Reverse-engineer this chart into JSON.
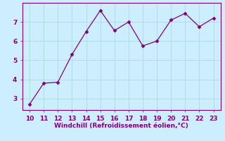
{
  "x": [
    10,
    11,
    12,
    13,
    14,
    15,
    16,
    17,
    18,
    19,
    20,
    21,
    22,
    23
  ],
  "y": [
    2.7,
    3.8,
    3.85,
    5.3,
    6.5,
    7.6,
    6.55,
    7.0,
    5.75,
    6.0,
    7.1,
    7.45,
    6.75,
    7.2
  ],
  "line_color": "#800080",
  "marker": "D",
  "marker_size": 2.5,
  "bg_color": "#cceeff",
  "xlabel": "Windchill (Refroidissement éolien,°C)",
  "xlabel_color": "#800080",
  "tick_color": "#800080",
  "spine_color": "#800080",
  "grid_color": "#aadddd",
  "ylim": [
    2.4,
    8.0
  ],
  "yticks": [
    3,
    4,
    5,
    6,
    7
  ],
  "xlim": [
    9.5,
    23.5
  ],
  "xticks": [
    10,
    11,
    12,
    13,
    14,
    15,
    16,
    17,
    18,
    19,
    20,
    21,
    22,
    23
  ],
  "tick_fontsize": 6.5,
  "xlabel_fontsize": 6.5
}
